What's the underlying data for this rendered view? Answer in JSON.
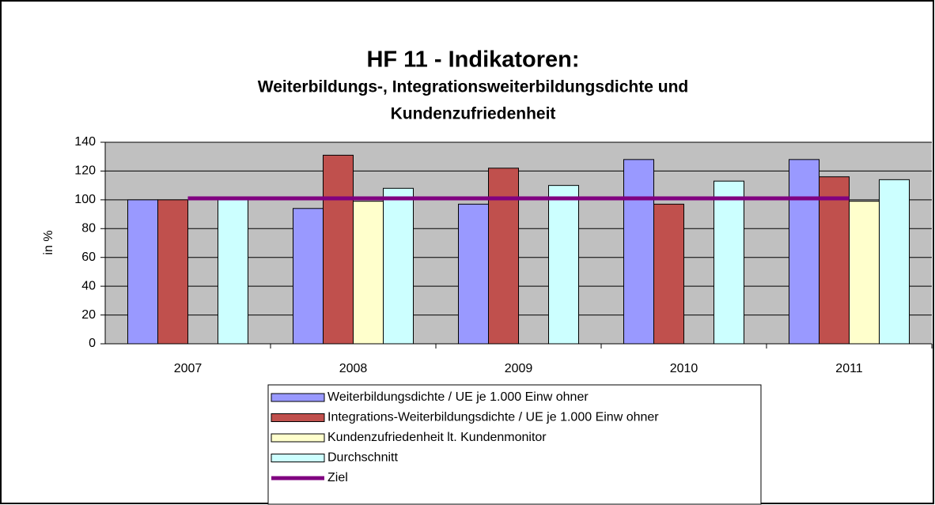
{
  "chart_data": {
    "type": "bar",
    "title": "HF 11 - Indikatoren:",
    "subtitle": [
      "Weiterbildungs-, Integrationsweiterbildungsdichte  und",
      "Kundenzufriedenheit"
    ],
    "y_label": "in %",
    "categories": [
      "2007",
      "2008",
      "2009",
      "2010",
      "2011"
    ],
    "series": [
      {
        "name": "Weiterbildungsdichte / UE je 1.000 Einw ohner",
        "color": "#9999ff",
        "values": [
          100,
          94,
          97,
          128,
          128
        ]
      },
      {
        "name": "Integrations-Weiterbildungsdichte / UE je 1.000 Einw ohner",
        "color": "#c0504d",
        "values": [
          100,
          131,
          122,
          97,
          116
        ]
      },
      {
        "name": "Kundenzufriedenheit lt. Kundenmonitor",
        "color": "#ffffcc",
        "values": [
          null,
          99,
          null,
          null,
          99
        ]
      },
      {
        "name": "Durchschnitt",
        "color": "#ccffff",
        "values": [
          100,
          108,
          110,
          113,
          114
        ]
      },
      {
        "name": "Ziel",
        "color": "#800080",
        "type": "line",
        "values": [
          101,
          101,
          101,
          101,
          101
        ]
      }
    ],
    "ylim": [
      0,
      140
    ],
    "yticks": [
      0,
      20,
      40,
      60,
      80,
      100,
      120,
      140
    ],
    "grid": true
  }
}
